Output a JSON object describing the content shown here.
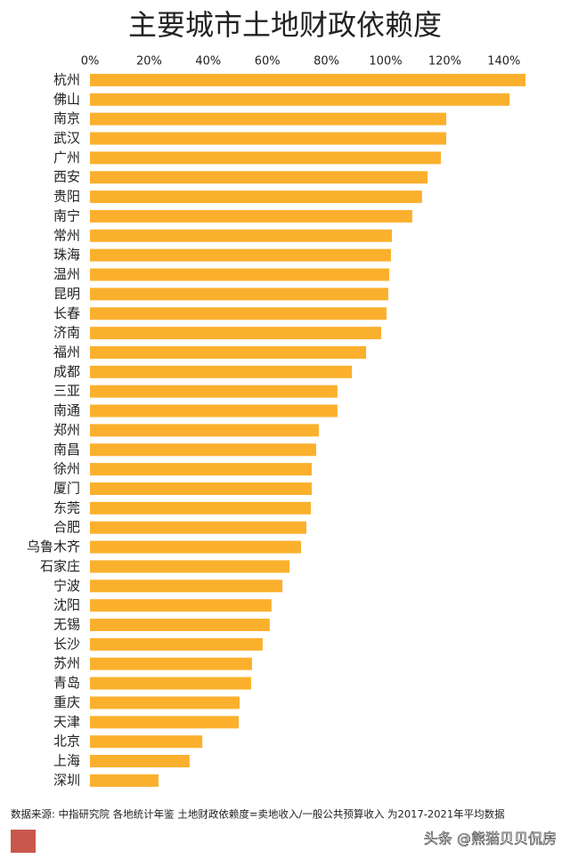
{
  "chart_data": {
    "type": "barh",
    "title": "主要城市土地财政依赖度",
    "categories": [
      "杭州",
      "佛山",
      "南京",
      "武汉",
      "广州",
      "西安",
      "贵阳",
      "南宁",
      "常州",
      "珠海",
      "温州",
      "昆明",
      "长春",
      "济南",
      "福州",
      "成都",
      "三亚",
      "南通",
      "郑州",
      "南昌",
      "徐州",
      "厦门",
      "东莞",
      "合肥",
      "乌鲁木齐",
      "石家庄",
      "宁波",
      "沈阳",
      "无锡",
      "长沙",
      "苏州",
      "青岛",
      "重庆",
      "天津",
      "北京",
      "上海",
      "深圳"
    ],
    "values": [
      147.3,
      141.9,
      120.5,
      120.5,
      118.7,
      114.2,
      112.3,
      109,
      102.1,
      101.8,
      101.2,
      100.9,
      100.3,
      98.5,
      93.4,
      88.6,
      83.7,
      83.7,
      77.4,
      76.5,
      75,
      75,
      74.7,
      73.2,
      71.4,
      67.5,
      65.1,
      61.4,
      60.8,
      58.4,
      54.8,
      54.5,
      50.6,
      50.3,
      38,
      33.7,
      23.2
    ],
    "color": "#fbb02d",
    "xlim": [
      0,
      150
    ],
    "xticks": [
      {
        "value": 0,
        "label": "0%"
      },
      {
        "value": 20,
        "label": "20%"
      },
      {
        "value": 40,
        "label": "40%"
      },
      {
        "value": 60,
        "label": "60%"
      },
      {
        "value": 80,
        "label": "80%"
      },
      {
        "value": 100,
        "label": "100%"
      },
      {
        "value": 120,
        "label": "120%"
      },
      {
        "value": 140,
        "label": "140%"
      }
    ],
    "note": "数据来源: 中指研究院 各地统计年鉴  土地财政依赖度=卖地收入/一般公共预算收入 为2017-2021年平均数据"
  },
  "watermark": "头条 @熊猫贝贝侃房"
}
